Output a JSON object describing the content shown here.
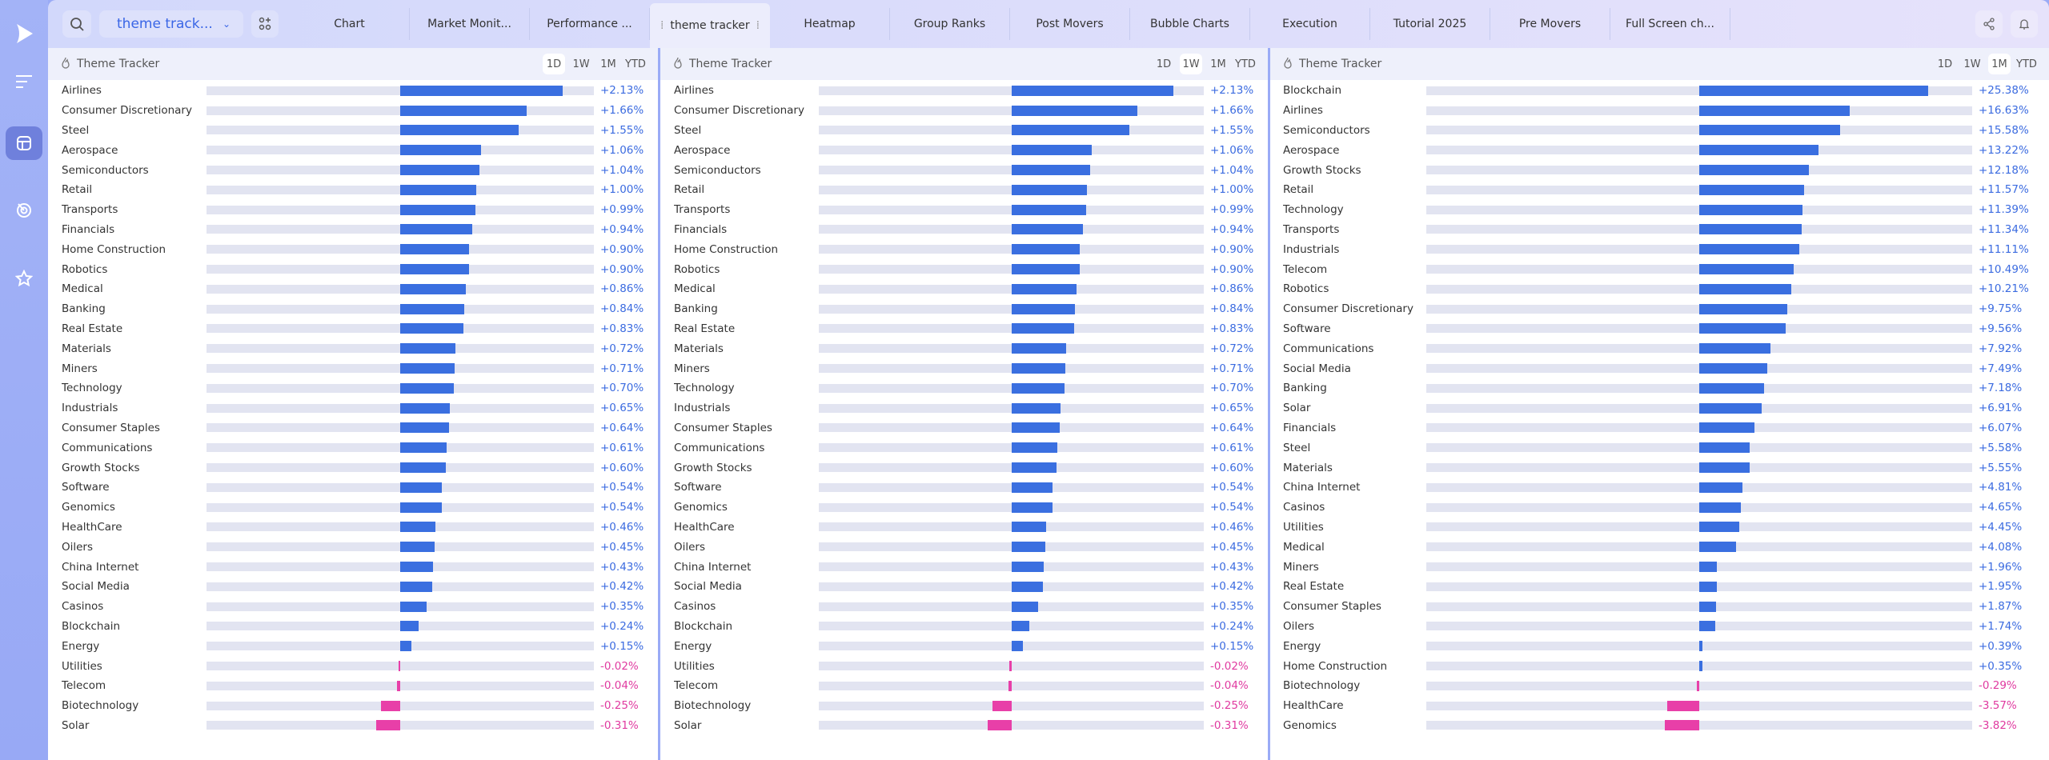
{
  "colors": {
    "positive": "#3a6fe0",
    "negative": "#e83fa8",
    "accent": "#3a66e6"
  },
  "sidebar": {
    "items": [
      {
        "icon": "logo-play-icon"
      },
      {
        "icon": "menu-icon"
      },
      {
        "icon": "layout-icon",
        "active": true
      },
      {
        "icon": "target-icon"
      },
      {
        "icon": "star-icon"
      }
    ]
  },
  "topbar": {
    "dropdown_label": "theme track...",
    "tabs": [
      "Chart",
      "Market Monit...",
      "Performance ...",
      "theme tracker",
      "Heatmap",
      "Group Ranks",
      "Post Movers",
      "Bubble Charts",
      "Execution",
      "Tutorial 2025",
      "Pre Movers",
      "Full Screen ch..."
    ],
    "active_tab": 3
  },
  "periods": [
    "1D",
    "1W",
    "1M",
    "YTD"
  ],
  "panels": [
    {
      "title": "Theme Tracker",
      "selected_period": "1D",
      "rows": [
        [
          "Airlines",
          2.13
        ],
        [
          "Consumer Discretionary",
          1.66
        ],
        [
          "Steel",
          1.55
        ],
        [
          "Aerospace",
          1.06
        ],
        [
          "Semiconductors",
          1.04
        ],
        [
          "Retail",
          1.0
        ],
        [
          "Transports",
          0.99
        ],
        [
          "Financials",
          0.94
        ],
        [
          "Home Construction",
          0.9
        ],
        [
          "Robotics",
          0.9
        ],
        [
          "Medical",
          0.86
        ],
        [
          "Banking",
          0.84
        ],
        [
          "Real Estate",
          0.83
        ],
        [
          "Materials",
          0.72
        ],
        [
          "Miners",
          0.71
        ],
        [
          "Technology",
          0.7
        ],
        [
          "Industrials",
          0.65
        ],
        [
          "Consumer Staples",
          0.64
        ],
        [
          "Communications",
          0.61
        ],
        [
          "Growth Stocks",
          0.6
        ],
        [
          "Software",
          0.54
        ],
        [
          "Genomics",
          0.54
        ],
        [
          "HealthCare",
          0.46
        ],
        [
          "Oilers",
          0.45
        ],
        [
          "China Internet",
          0.43
        ],
        [
          "Social Media",
          0.42
        ],
        [
          "Casinos",
          0.35
        ],
        [
          "Blockchain",
          0.24
        ],
        [
          "Energy",
          0.15
        ],
        [
          "Utilities",
          -0.02
        ],
        [
          "Telecom",
          -0.04
        ],
        [
          "Biotechnology",
          -0.25
        ],
        [
          "Solar",
          -0.31
        ]
      ]
    },
    {
      "title": "Theme Tracker",
      "selected_period": "1W",
      "rows": [
        [
          "Airlines",
          2.13
        ],
        [
          "Consumer Discretionary",
          1.66
        ],
        [
          "Steel",
          1.55
        ],
        [
          "Aerospace",
          1.06
        ],
        [
          "Semiconductors",
          1.04
        ],
        [
          "Retail",
          1.0
        ],
        [
          "Transports",
          0.99
        ],
        [
          "Financials",
          0.94
        ],
        [
          "Home Construction",
          0.9
        ],
        [
          "Robotics",
          0.9
        ],
        [
          "Medical",
          0.86
        ],
        [
          "Banking",
          0.84
        ],
        [
          "Real Estate",
          0.83
        ],
        [
          "Materials",
          0.72
        ],
        [
          "Miners",
          0.71
        ],
        [
          "Technology",
          0.7
        ],
        [
          "Industrials",
          0.65
        ],
        [
          "Consumer Staples",
          0.64
        ],
        [
          "Communications",
          0.61
        ],
        [
          "Growth Stocks",
          0.6
        ],
        [
          "Software",
          0.54
        ],
        [
          "Genomics",
          0.54
        ],
        [
          "HealthCare",
          0.46
        ],
        [
          "Oilers",
          0.45
        ],
        [
          "China Internet",
          0.43
        ],
        [
          "Social Media",
          0.42
        ],
        [
          "Casinos",
          0.35
        ],
        [
          "Blockchain",
          0.24
        ],
        [
          "Energy",
          0.15
        ],
        [
          "Utilities",
          -0.02
        ],
        [
          "Telecom",
          -0.04
        ],
        [
          "Biotechnology",
          -0.25
        ],
        [
          "Solar",
          -0.31
        ]
      ]
    },
    {
      "title": "Theme Tracker",
      "selected_period": "1M",
      "rows": [
        [
          "Blockchain",
          25.38
        ],
        [
          "Airlines",
          16.63
        ],
        [
          "Semiconductors",
          15.58
        ],
        [
          "Aerospace",
          13.22
        ],
        [
          "Growth Stocks",
          12.18
        ],
        [
          "Retail",
          11.57
        ],
        [
          "Technology",
          11.39
        ],
        [
          "Transports",
          11.34
        ],
        [
          "Industrials",
          11.11
        ],
        [
          "Telecom",
          10.49
        ],
        [
          "Robotics",
          10.21
        ],
        [
          "Consumer Discretionary",
          9.75
        ],
        [
          "Software",
          9.56
        ],
        [
          "Communications",
          7.92
        ],
        [
          "Social Media",
          7.49
        ],
        [
          "Banking",
          7.18
        ],
        [
          "Solar",
          6.91
        ],
        [
          "Financials",
          6.07
        ],
        [
          "Steel",
          5.58
        ],
        [
          "Materials",
          5.55
        ],
        [
          "China Internet",
          4.81
        ],
        [
          "Casinos",
          4.65
        ],
        [
          "Utilities",
          4.45
        ],
        [
          "Medical",
          4.08
        ],
        [
          "Miners",
          1.96
        ],
        [
          "Real Estate",
          1.95
        ],
        [
          "Consumer Staples",
          1.87
        ],
        [
          "Oilers",
          1.74
        ],
        [
          "Energy",
          0.39
        ],
        [
          "Home Construction",
          0.35
        ],
        [
          "Biotechnology",
          -0.29
        ],
        [
          "HealthCare",
          -3.57
        ],
        [
          "Genomics",
          -3.82
        ]
      ]
    }
  ]
}
